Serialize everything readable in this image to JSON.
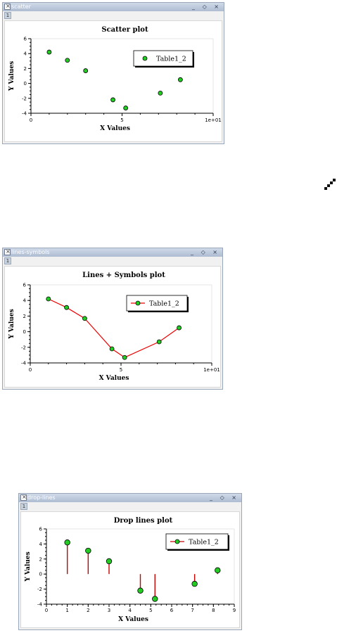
{
  "windows": [
    {
      "window_title": "scatter",
      "tab_label": "1",
      "controls": "_ ◇ ×",
      "chart_data": {
        "type": "scatter",
        "title": "Scatter plot",
        "xlabel": "X Values",
        "ylabel": "Y Values",
        "xlim": [
          0,
          10
        ],
        "ylim": [
          -4,
          6
        ],
        "xticks": [
          "0",
          "5",
          "1e+01"
        ],
        "yticks": [
          "-4",
          "-2",
          "0",
          "2",
          "4",
          "6"
        ],
        "series": [
          {
            "name": "Table1_2",
            "color": "#22cc22",
            "x": [
              1,
              2,
              3,
              4.5,
              5.2,
              7.1,
              8.2
            ],
            "y": [
              4.2,
              3.1,
              1.7,
              -2.2,
              -3.3,
              -1.3,
              0.5
            ]
          }
        ]
      }
    },
    {
      "window_title": "lines-symbols",
      "tab_label": "1",
      "controls": "_ ◇ ×",
      "chart_data": {
        "type": "line",
        "title": "Lines + Symbols plot",
        "xlabel": "X Values",
        "ylabel": "Y Values",
        "xlim": [
          0,
          10
        ],
        "ylim": [
          -4,
          6
        ],
        "xticks": [
          "0",
          "5",
          "1e+01"
        ],
        "yticks": [
          "-4",
          "-2",
          "0",
          "2",
          "4",
          "6"
        ],
        "series": [
          {
            "name": "Table1_2",
            "color": "#22cc22",
            "line_color": "#ee0000",
            "x": [
              1,
              2,
              3,
              4.5,
              5.2,
              7.1,
              8.2
            ],
            "y": [
              4.2,
              3.1,
              1.7,
              -2.2,
              -3.3,
              -1.3,
              0.5
            ]
          }
        ]
      }
    },
    {
      "window_title": "drop-lines",
      "tab_label": "1",
      "controls": "_ ◇ ×",
      "chart_data": {
        "type": "scatter",
        "title": "Drop lines plot",
        "xlabel": "X Values",
        "ylabel": "Y Values",
        "xlim": [
          0,
          9
        ],
        "ylim": [
          -4,
          6
        ],
        "xticks": [
          "0",
          "1",
          "2",
          "3",
          "4",
          "5",
          "6",
          "7",
          "8",
          "9"
        ],
        "yticks": [
          "-4",
          "-2",
          "0",
          "2",
          "4",
          "6"
        ],
        "series": [
          {
            "name": "Table1_2",
            "color": "#22cc22",
            "line_color": "#cc0000",
            "x": [
              1,
              2,
              3,
              4.5,
              5.2,
              7.1,
              8.2
            ],
            "y": [
              4.2,
              3.1,
              1.7,
              -2.2,
              -3.3,
              -1.3,
              0.5
            ]
          }
        ]
      }
    }
  ],
  "floating_icon": "resize-diagonal-icon"
}
